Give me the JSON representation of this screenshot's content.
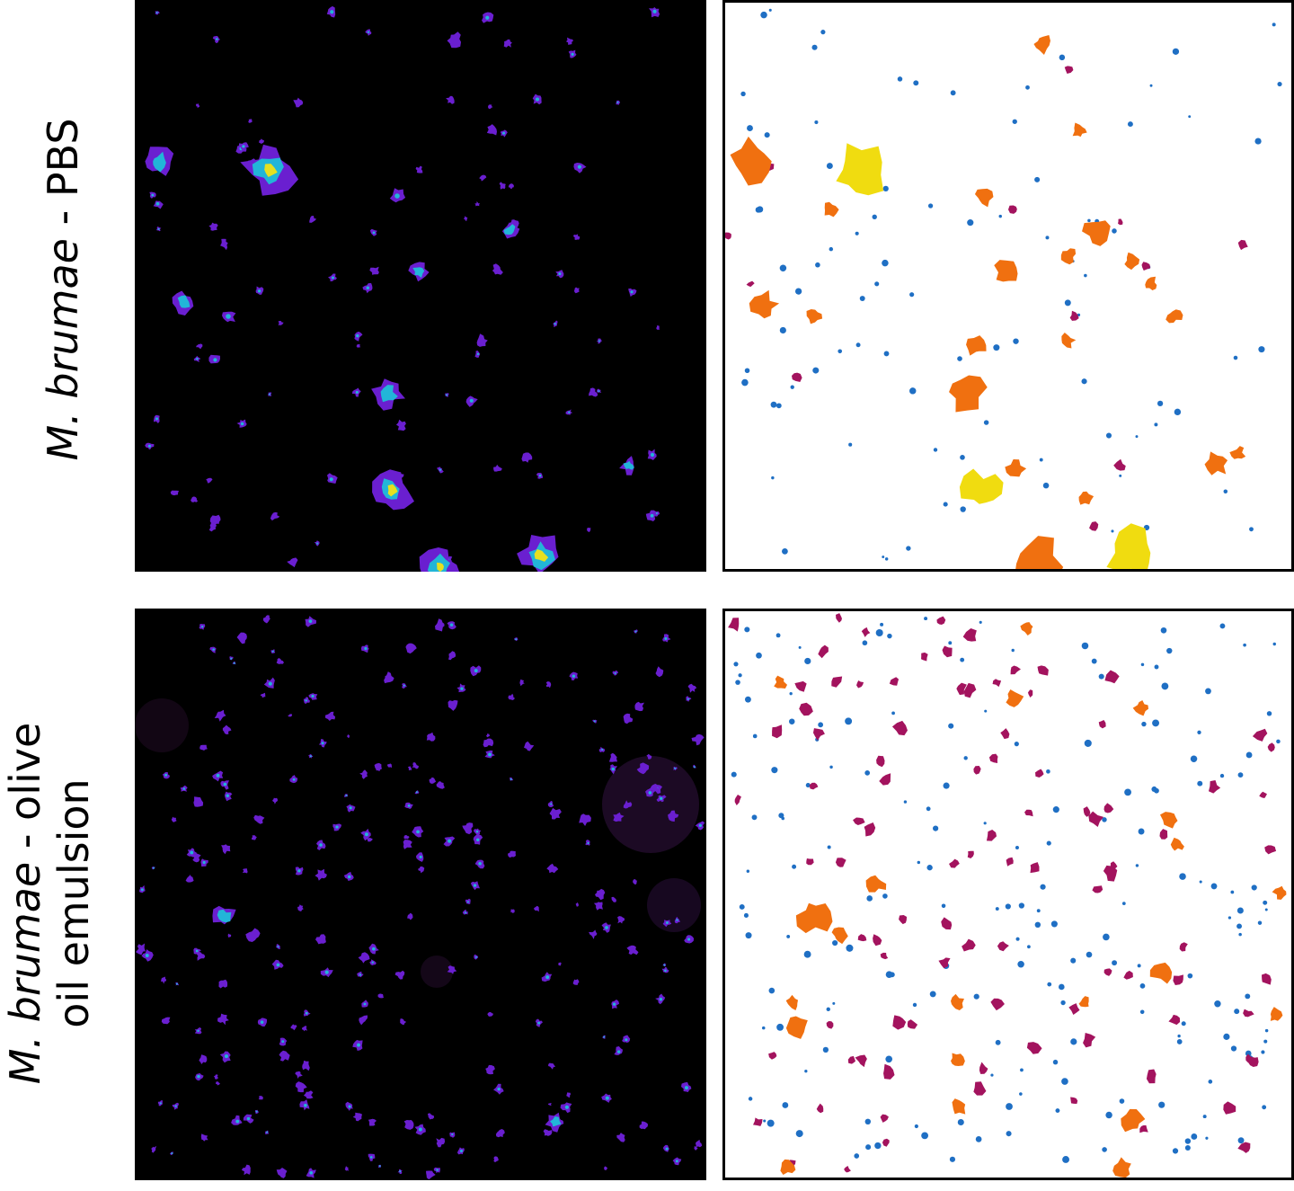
{
  "labels": {
    "top": {
      "species": "M. brumae",
      "condition": " - PBS"
    },
    "bottom": {
      "species": "M. brumae",
      "line1_suffix": " - olive",
      "line2": "oil emulsion"
    }
  },
  "colors": {
    "background": "#ffffff",
    "fluorescence_background": "#000000",
    "fluorescence_low": "#6a1fd0",
    "fluorescence_mid": "#22b5d8",
    "fluorescence_high": "#e6e020",
    "segment_smallest": "#1f6fc4",
    "segment_small": "#a3135e",
    "segment_medium": "#f07010",
    "segment_large": "#f0dc10"
  }
}
